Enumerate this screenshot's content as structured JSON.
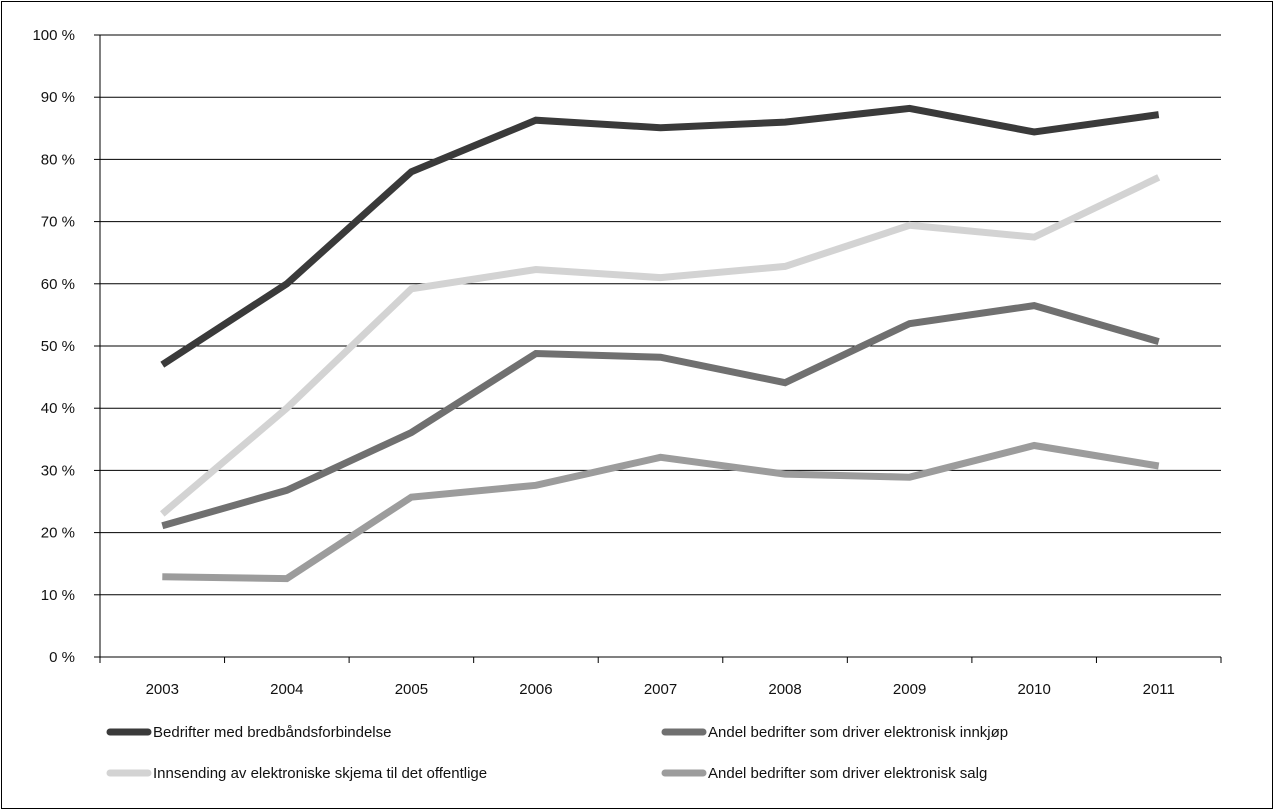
{
  "chart_data": {
    "type": "line",
    "title": "",
    "xlabel": "",
    "ylabel": "",
    "x": [
      "2003",
      "2004",
      "2005",
      "2006",
      "2007",
      "2008",
      "2009",
      "2010",
      "2011"
    ],
    "ylim": [
      0,
      100
    ],
    "yticks": [
      0,
      10,
      20,
      30,
      40,
      50,
      60,
      70,
      80,
      90,
      100
    ],
    "ytick_labels": [
      "0 %",
      "10 %",
      "20 %",
      "30 %",
      "40 %",
      "50 %",
      "60 %",
      "70 %",
      "80 %",
      "90 %",
      "100 %"
    ],
    "grid": "horizontal",
    "legend_position": "bottom",
    "series": [
      {
        "name": "Bedrifter med bredbåndsforbindelse",
        "color": "#3a3a3a",
        "values": [
          47,
          60,
          78,
          86.3,
          85.1,
          86,
          88.2,
          84.4,
          87.2
        ]
      },
      {
        "name": "Innsending av elektroniske skjema til det offentlige",
        "color": "#d3d3d3",
        "values": [
          23,
          40,
          59.2,
          62.3,
          61,
          62.8,
          69.4,
          67.5,
          77.1
        ]
      },
      {
        "name": "Andel bedrifter som driver elektronisk innkjøp",
        "color": "#707070",
        "values": [
          21.1,
          26.8,
          36.1,
          48.8,
          48.2,
          44.1,
          53.6,
          56.5,
          50.7
        ]
      },
      {
        "name": "Andel bedrifter som driver elektronisk salg",
        "color": "#9c9c9c",
        "values": [
          12.9,
          12.6,
          25.7,
          27.6,
          32.1,
          29.4,
          28.9,
          34,
          30.7
        ]
      }
    ]
  }
}
